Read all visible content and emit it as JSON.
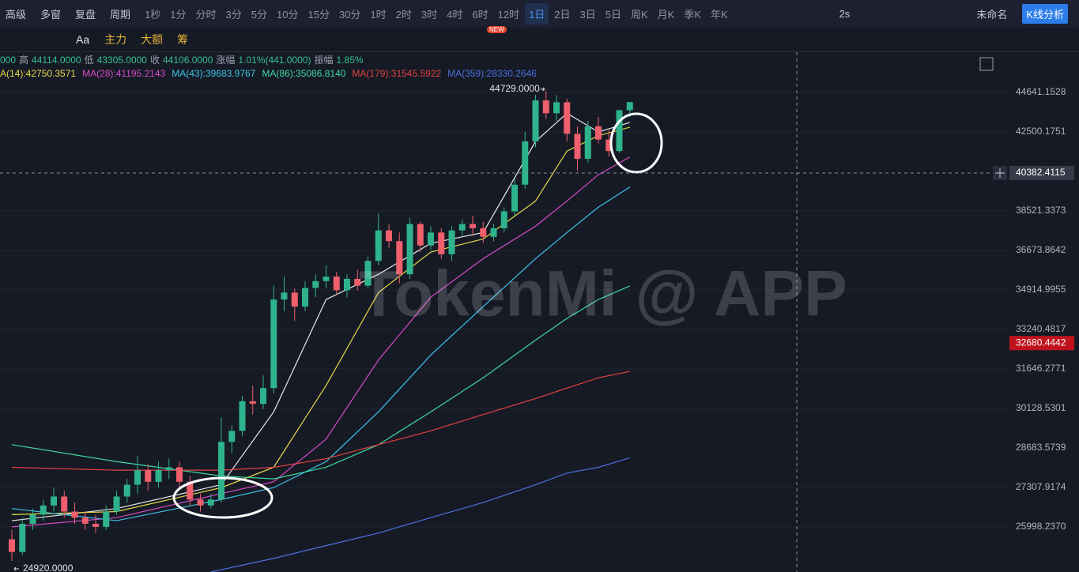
{
  "toolbar": {
    "left": [
      "高级",
      "多窗",
      "复盘",
      "周期"
    ],
    "intervals": [
      "1秒",
      "1分",
      "分时",
      "3分",
      "5分",
      "10分",
      "15分",
      "30分",
      "1时",
      "2时",
      "3时",
      "4时",
      "6时",
      "12时",
      "1日",
      "2日",
      "3日",
      "5日",
      "周K",
      "月K",
      "季K",
      "年K"
    ],
    "active": "1日",
    "right": [
      "2s",
      "未命名",
      "K线分析"
    ]
  },
  "tools": [
    "Aa",
    "主力",
    "大额",
    "筹"
  ],
  "new_badge": "NEW",
  "info": [
    "000",
    "高",
    "44114.0000",
    "低",
    "43305.0000",
    "收",
    "44106.0000",
    "涨幅",
    "1.01%(441.0000)",
    "振幅",
    "1.85%"
  ],
  "watermark": "TokenMi @ APP",
  "chart_data": {
    "type": "candlestick",
    "yscale": "log",
    "ylim": [
      46890,
      24580
    ],
    "yticks": [
      44641.1528,
      42500.1751,
      38521.3373,
      36673.8642,
      34914.9955,
      33240.4817,
      31646.2771,
      30128.5301,
      28683.5739,
      27307.9174,
      {
        "value": 25998.237,
        "label": "25998.2370"
      }
    ],
    "up_color": "#2fb38c",
    "down_color": "#ef5f6c",
    "ohlc": [
      [
        25600,
        25900,
        24920,
        25200
      ],
      [
        25200,
        26300,
        25100,
        26100
      ],
      [
        26100,
        26600,
        25900,
        26400
      ],
      [
        26400,
        26900,
        26200,
        26700
      ],
      [
        26700,
        27300,
        26500,
        27000
      ],
      [
        27000,
        27200,
        26300,
        26500
      ],
      [
        26500,
        26800,
        26100,
        26300
      ],
      [
        26300,
        26500,
        25900,
        26100
      ],
      [
        26100,
        26400,
        25800,
        26000
      ],
      [
        26000,
        26700,
        25900,
        26500
      ],
      [
        26500,
        27200,
        26400,
        27000
      ],
      [
        27000,
        27600,
        26800,
        27400
      ],
      [
        27400,
        28400,
        27100,
        27900
      ],
      [
        27900,
        28100,
        27200,
        27500
      ],
      [
        27500,
        28200,
        27300,
        27900
      ],
      [
        27900,
        28300,
        27600,
        28000
      ],
      [
        28000,
        28200,
        27300,
        27500
      ],
      [
        27500,
        27700,
        26700,
        26900
      ],
      [
        26900,
        27100,
        26500,
        26700
      ],
      [
        26700,
        27100,
        26600,
        26900
      ],
      [
        26900,
        29800,
        26800,
        28900
      ],
      [
        28900,
        29500,
        28500,
        29300
      ],
      [
        29300,
        30600,
        29100,
        30400
      ],
      [
        30400,
        31000,
        29900,
        30300
      ],
      [
        30300,
        31400,
        30100,
        30900
      ],
      [
        30900,
        35100,
        30700,
        34500
      ],
      [
        34500,
        35500,
        34000,
        34800
      ],
      [
        34800,
        35000,
        33600,
        34200
      ],
      [
        34200,
        35300,
        34000,
        35000
      ],
      [
        35000,
        35600,
        34600,
        35300
      ],
      [
        35300,
        36000,
        35000,
        35500
      ],
      [
        35500,
        35700,
        34700,
        34900
      ],
      [
        34900,
        35600,
        34600,
        35400
      ],
      [
        35400,
        35800,
        34900,
        35100
      ],
      [
        35100,
        36400,
        35000,
        36200
      ],
      [
        36200,
        38400,
        36000,
        37600
      ],
      [
        37600,
        37900,
        36800,
        37100
      ],
      [
        37100,
        37500,
        35200,
        35600
      ],
      [
        35600,
        38200,
        35400,
        37900
      ],
      [
        37900,
        38000,
        36600,
        36900
      ],
      [
        36900,
        37800,
        36700,
        37500
      ],
      [
        37500,
        37700,
        36300,
        36500
      ],
      [
        36500,
        37800,
        36200,
        37600
      ],
      [
        37600,
        38100,
        37300,
        37900
      ],
      [
        37900,
        38300,
        37400,
        37700
      ],
      [
        37700,
        38000,
        37000,
        37300
      ],
      [
        37300,
        37900,
        37100,
        37700
      ],
      [
        37700,
        38700,
        37500,
        38500
      ],
      [
        38500,
        40100,
        38300,
        39800
      ],
      [
        39800,
        42500,
        39600,
        42000
      ],
      [
        42000,
        44500,
        41700,
        44200
      ],
      [
        44200,
        44729,
        43200,
        43500
      ],
      [
        43500,
        44500,
        43100,
        44100
      ],
      [
        44100,
        44300,
        42000,
        42400
      ],
      [
        42400,
        42800,
        40500,
        41100
      ],
      [
        41100,
        43100,
        40900,
        42800
      ],
      [
        42800,
        43300,
        41900,
        42100
      ],
      [
        42100,
        42600,
        41200,
        41500
      ],
      [
        41500,
        43700,
        41400,
        43665
      ],
      [
        43665,
        44114,
        43305,
        44106
      ]
    ],
    "lines": [
      {
        "color": "#e8e8e8",
        "x": [
          0,
          10,
          20,
          25,
          30,
          35,
          40,
          45,
          50,
          53,
          56,
          59
        ],
        "values": [
          26200,
          26600,
          27400,
          30000,
          34500,
          35600,
          37000,
          37500,
          42000,
          43500,
          42500,
          43000
        ]
      },
      {
        "name": "A(14):42750.3571",
        "color": "#e6d94a",
        "x": [
          0,
          10,
          20,
          25,
          30,
          35,
          40,
          45,
          50,
          53,
          56,
          59
        ],
        "values": [
          26400,
          26500,
          27300,
          28000,
          31000,
          34800,
          36600,
          37200,
          39000,
          41500,
          42300,
          42750
        ]
      },
      {
        "name": "MA(28):41195.2143",
        "color": "#d64bc6",
        "x": [
          0,
          10,
          20,
          25,
          30,
          35,
          40,
          45,
          50,
          53,
          56,
          59
        ],
        "values": [
          26000,
          26300,
          27100,
          27500,
          29000,
          32000,
          34600,
          36300,
          37800,
          39000,
          40300,
          41195
        ]
      },
      {
        "name": "MA(43):39683.9767",
        "color": "#3cc3e6",
        "x": [
          0,
          10,
          20,
          25,
          30,
          35,
          40,
          45,
          50,
          53,
          56,
          59
        ],
        "values": [
          26600,
          26200,
          26900,
          27300,
          28200,
          30000,
          32200,
          34200,
          36300,
          37500,
          38700,
          39684
        ]
      },
      {
        "name": "MA(86):35086.8140",
        "color": "#3ed9a0",
        "x": [
          0,
          10,
          20,
          25,
          30,
          35,
          40,
          45,
          50,
          53,
          56,
          59
        ],
        "values": [
          28800,
          28200,
          27700,
          27600,
          28000,
          28800,
          30000,
          31300,
          32800,
          33700,
          34500,
          35087
        ]
      },
      {
        "name": "MA(179):31545.5922",
        "color": "#e0433f",
        "x": [
          0,
          10,
          20,
          25,
          30,
          35,
          40,
          45,
          50,
          53,
          56,
          59
        ],
        "values": [
          28000,
          27900,
          27900,
          28000,
          28300,
          28800,
          29300,
          29900,
          30500,
          30900,
          31300,
          31546
        ]
      },
      {
        "name": "MA(359):28330.2646",
        "color": "#4a72e0",
        "x": [
          19,
          25,
          30,
          35,
          40,
          45,
          50,
          53,
          56,
          59
        ],
        "values": [
          24580,
          25000,
          25400,
          25800,
          26300,
          26800,
          27400,
          27800,
          28000,
          28330
        ]
      }
    ],
    "high_label": {
      "value": 44729,
      "label": "44729.0000"
    },
    "low_label": {
      "value": 24920,
      "label": "24920.0000"
    },
    "last_price": 32680.4442,
    "crosshair_price": 40382.4115
  }
}
